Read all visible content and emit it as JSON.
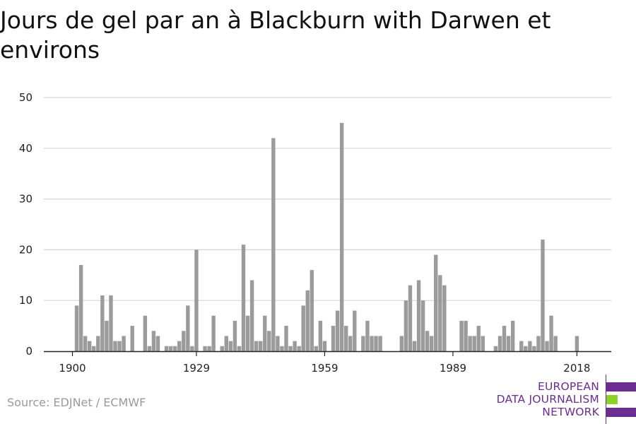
{
  "title": "Jours de gel par an à Blackburn with Darwen et environs",
  "source": "Source: EDJNet / ECMWF",
  "logo": {
    "lines": [
      "EUROPEAN",
      "DATA JOURNALISM",
      "NETWORK"
    ],
    "colors": {
      "purple": "#6b2d8f",
      "green": "#8ed12a"
    }
  },
  "colors": {
    "bar": "#9b9b9b",
    "grid": "#d6d6d6",
    "axis": "#222222",
    "text": "#222222"
  },
  "chart_data": {
    "type": "bar",
    "title": "Jours de gel par an à Blackburn with Darwen et environs",
    "xlabel": "",
    "ylabel": "",
    "ylim": [
      0,
      50
    ],
    "yticks": [
      0,
      10,
      20,
      30,
      40,
      50
    ],
    "xticks": [
      1900,
      1929,
      1959,
      1989,
      2018
    ],
    "grid": true,
    "x": [
      1900,
      1901,
      1902,
      1903,
      1904,
      1905,
      1906,
      1907,
      1908,
      1909,
      1910,
      1911,
      1912,
      1913,
      1914,
      1915,
      1916,
      1917,
      1918,
      1919,
      1920,
      1921,
      1922,
      1923,
      1924,
      1925,
      1926,
      1927,
      1928,
      1929,
      1930,
      1931,
      1932,
      1933,
      1934,
      1935,
      1936,
      1937,
      1938,
      1939,
      1940,
      1941,
      1942,
      1943,
      1944,
      1945,
      1946,
      1947,
      1948,
      1949,
      1950,
      1951,
      1952,
      1953,
      1954,
      1955,
      1956,
      1957,
      1958,
      1959,
      1960,
      1961,
      1962,
      1963,
      1964,
      1965,
      1966,
      1967,
      1968,
      1969,
      1970,
      1971,
      1972,
      1973,
      1974,
      1975,
      1976,
      1977,
      1978,
      1979,
      1980,
      1981,
      1982,
      1983,
      1984,
      1985,
      1986,
      1987,
      1988,
      1989,
      1990,
      1991,
      1992,
      1993,
      1994,
      1995,
      1996,
      1997,
      1998,
      1999,
      2000,
      2001,
      2002,
      2003,
      2004,
      2005,
      2006,
      2007,
      2008,
      2009,
      2010,
      2011,
      2012,
      2013,
      2014,
      2015,
      2016,
      2017,
      2018,
      2019,
      2020
    ],
    "values": [
      0,
      9,
      17,
      3,
      2,
      1,
      3,
      11,
      6,
      11,
      2,
      2,
      3,
      0,
      5,
      0,
      0,
      7,
      1,
      4,
      3,
      0,
      1,
      1,
      1,
      2,
      4,
      9,
      1,
      20,
      0,
      1,
      1,
      7,
      0,
      1,
      3,
      2,
      6,
      1,
      21,
      7,
      14,
      2,
      2,
      7,
      4,
      42,
      3,
      1,
      5,
      1,
      2,
      1,
      9,
      12,
      16,
      1,
      6,
      2,
      0,
      5,
      8,
      45,
      5,
      3,
      8,
      0,
      3,
      6,
      3,
      3,
      3,
      0,
      0,
      0,
      0,
      3,
      10,
      13,
      2,
      14,
      10,
      4,
      3,
      19,
      15,
      13,
      0,
      0,
      0,
      6,
      6,
      3,
      3,
      5,
      3,
      0,
      0,
      1,
      3,
      5,
      3,
      6,
      0,
      2,
      1,
      2,
      1,
      3,
      22,
      2,
      7,
      3,
      0,
      0,
      0,
      0,
      3,
      0,
      0
    ]
  }
}
